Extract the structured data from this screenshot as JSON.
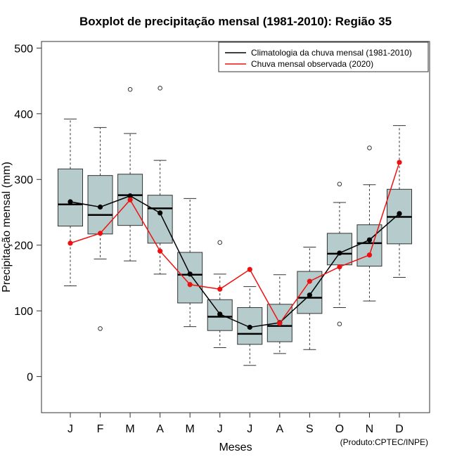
{
  "chart_data": {
    "type": "boxplot",
    "title": "Boxplot de precipitação mensal (1981-2010): Região 35",
    "xlabel": "Meses",
    "ylabel": "Precipitação mensal (mm)",
    "ylim": [
      -55,
      510
    ],
    "yticks": [
      0,
      100,
      200,
      300,
      400,
      500
    ],
    "categories": [
      "J",
      "F",
      "M",
      "A",
      "M",
      "J",
      "J",
      "A",
      "S",
      "O",
      "N",
      "D"
    ],
    "boxes": [
      {
        "whisker_low": 138,
        "q1": 229,
        "median": 262,
        "q3": 316,
        "whisker_high": 392,
        "outliers": []
      },
      {
        "whisker_low": 179,
        "q1": 217,
        "median": 246,
        "q3": 306,
        "whisker_high": 379,
        "outliers": [
          73
        ]
      },
      {
        "whisker_low": 176,
        "q1": 230,
        "median": 276,
        "q3": 308,
        "whisker_high": 370,
        "outliers": [
          437
        ]
      },
      {
        "whisker_low": 156,
        "q1": 203,
        "median": 256,
        "q3": 276,
        "whisker_high": 329,
        "outliers": [
          439
        ]
      },
      {
        "whisker_low": 76,
        "q1": 112,
        "median": 155,
        "q3": 189,
        "whisker_high": 271,
        "outliers": []
      },
      {
        "whisker_low": 44,
        "q1": 70,
        "median": 91,
        "q3": 117,
        "whisker_high": 156,
        "outliers": [
          204
        ]
      },
      {
        "whisker_low": 17,
        "q1": 49,
        "median": 65,
        "q3": 105,
        "whisker_high": 137,
        "outliers": []
      },
      {
        "whisker_low": 35,
        "q1": 53,
        "median": 77,
        "q3": 110,
        "whisker_high": 155,
        "outliers": []
      },
      {
        "whisker_low": 41,
        "q1": 96,
        "median": 120,
        "q3": 160,
        "whisker_high": 197,
        "outliers": []
      },
      {
        "whisker_low": 105,
        "q1": 170,
        "median": 187,
        "q3": 218,
        "whisker_high": 265,
        "outliers": [
          80,
          293
        ]
      },
      {
        "whisker_low": 115,
        "q1": 168,
        "median": 203,
        "q3": 231,
        "whisker_high": 292,
        "outliers": [
          348
        ]
      },
      {
        "whisker_low": 151,
        "q1": 202,
        "median": 243,
        "q3": 285,
        "whisker_high": 382,
        "outliers": []
      }
    ],
    "series": [
      {
        "name": "Climatologia da chuva mensal (1981-2010)",
        "color": "#000000",
        "values": [
          266,
          258,
          275,
          249,
          156,
          95,
          75,
          82,
          124,
          188,
          208,
          248
        ]
      },
      {
        "name": "Chuva mensal observada (2020)",
        "color": "#ee1111",
        "values": [
          203,
          218,
          269,
          191,
          140,
          133,
          163,
          81,
          145,
          167,
          185,
          326
        ]
      }
    ],
    "legend_position": "top-right",
    "box_fill": "#b5cbcc"
  },
  "footer": {
    "credit": "(Produto:CPTEC/INPE)"
  }
}
